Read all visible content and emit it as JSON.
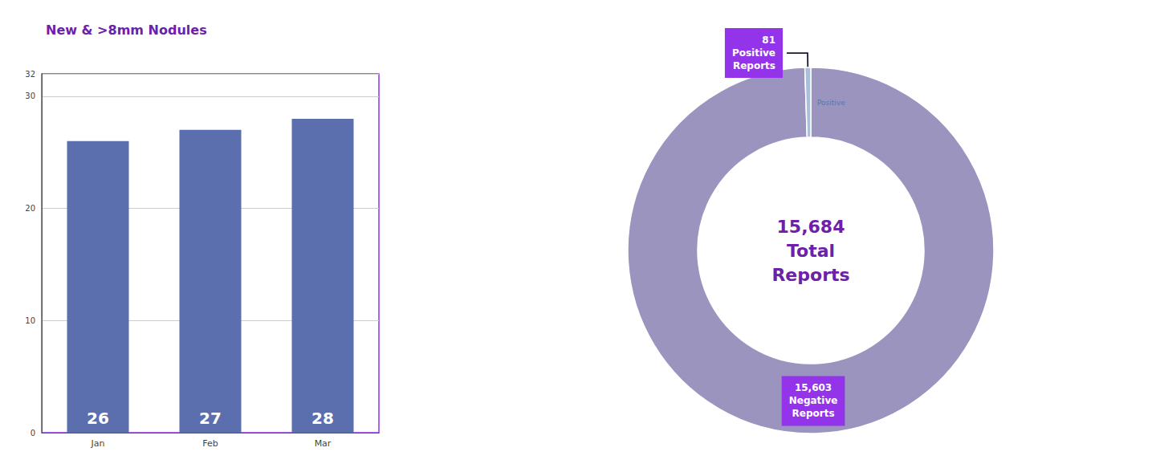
{
  "chart_data": [
    {
      "type": "bar",
      "title": "New & >8mm Nodules",
      "categories": [
        "Jan",
        "Feb",
        "Mar"
      ],
      "values": [
        26,
        27,
        28
      ],
      "color": "#5B6EAE",
      "ylim": [
        0,
        32
      ],
      "yticks": [
        0,
        10,
        20,
        30
      ],
      "grid": true,
      "data_labels": true
    },
    {
      "type": "donut",
      "values": [
        15603,
        81
      ],
      "value_labels": [
        "15,603\nNegative\nReports",
        "81\nPositive\nReports"
      ],
      "colors": [
        "#9B94BE",
        "#AABFDC"
      ],
      "annotations": [
        "15,684\nTotal\nReports",
        "Positive"
      ]
    }
  ]
}
